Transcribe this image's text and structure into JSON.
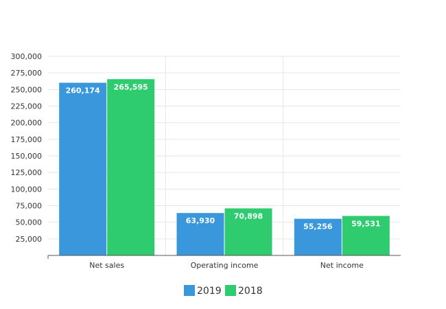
{
  "chart_data": {
    "type": "bar",
    "categories": [
      "Net sales",
      "Operating income",
      "Net income"
    ],
    "series": [
      {
        "name": "2019",
        "values": [
          260174,
          63930,
          55256
        ],
        "color": "#3a97db",
        "labels": [
          "260,174",
          "63,930",
          "55,256"
        ]
      },
      {
        "name": "2018",
        "values": [
          265595,
          70898,
          59531
        ],
        "color": "#2ecc6f",
        "labels": [
          "265,595",
          "70,898",
          "59,531"
        ]
      }
    ],
    "ylim": [
      0,
      300000
    ],
    "yticks": [
      "25,000",
      "50,000",
      "75,000",
      "100,000",
      "125,000",
      "150,000",
      "175,000",
      "200,000",
      "225,000",
      "250,000",
      "275,000",
      "300,000"
    ],
    "ytick_values": [
      25000,
      50000,
      75000,
      100000,
      125000,
      150000,
      175000,
      200000,
      225000,
      250000,
      275000,
      300000
    ],
    "grid": true,
    "legend": "bottom-center"
  }
}
